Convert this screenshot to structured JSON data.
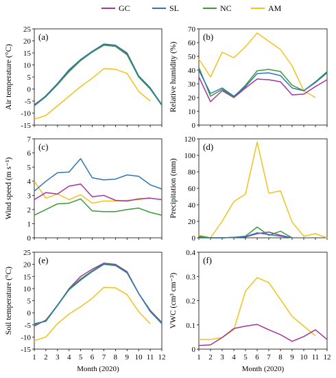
{
  "legend": [
    {
      "name": "GC",
      "color": "#a2359c"
    },
    {
      "name": "SL",
      "color": "#2e75b6"
    },
    {
      "name": "NC",
      "color": "#3a9a38"
    },
    {
      "name": "AM",
      "color": "#f2c21a"
    }
  ],
  "chart_data": [
    {
      "type": "line",
      "panel_label": "(a)",
      "ylabel": "Air temperature (°C)",
      "xlabel": "",
      "ylim": [
        -15,
        25
      ],
      "yticks": [
        -15,
        -10,
        -5,
        0,
        5,
        10,
        15,
        20,
        25
      ],
      "x": [
        1,
        2,
        3,
        4,
        5,
        6,
        7,
        8,
        9,
        10,
        11,
        12
      ],
      "series": [
        {
          "name": "GC",
          "values": [
            -6.5,
            -3,
            2,
            7.5,
            12,
            15.5,
            18.5,
            17.8,
            14.5,
            5,
            0,
            -6.5
          ]
        },
        {
          "name": "SL",
          "values": [
            -6.8,
            -2.8,
            2.3,
            8,
            12.3,
            15.7,
            18.7,
            18.2,
            15,
            5.5,
            0.5,
            -6.5
          ]
        },
        {
          "name": "NC",
          "values": [
            -7,
            -3.2,
            1.8,
            7.2,
            11.8,
            15.3,
            18.2,
            17.7,
            14.2,
            5,
            0,
            -6.8
          ]
        },
        {
          "name": "AM",
          "values": [
            -12.5,
            -11,
            -7,
            -3,
            1,
            4.5,
            8.5,
            8.2,
            6.5,
            -1,
            -5,
            null
          ]
        }
      ]
    },
    {
      "type": "line",
      "panel_label": "(b)",
      "ylabel": "Relative humidity (%)",
      "xlabel": "",
      "ylim": [
        0,
        70
      ],
      "yticks": [
        0,
        10,
        20,
        30,
        40,
        50,
        60,
        70
      ],
      "x": [
        1,
        2,
        3,
        4,
        5,
        6,
        7,
        8,
        9,
        10,
        11,
        12
      ],
      "series": [
        {
          "name": "GC",
          "values": [
            35,
            17,
            25,
            20,
            27,
            33.5,
            33,
            31.5,
            22,
            22.5,
            28,
            33
          ]
        },
        {
          "name": "SL",
          "values": [
            40,
            23,
            27,
            21,
            28,
            37.5,
            38,
            36,
            27,
            25,
            31,
            38
          ]
        },
        {
          "name": "NC",
          "values": [
            42,
            21,
            26,
            20.5,
            29,
            39.5,
            40.5,
            39,
            29,
            25,
            31.5,
            39
          ]
        },
        {
          "name": "AM",
          "values": [
            48,
            35,
            53,
            49,
            57,
            67,
            61,
            55,
            43,
            25,
            20,
            null
          ]
        }
      ]
    },
    {
      "type": "line",
      "panel_label": "(c)",
      "ylabel": "Wind speed (m s⁻¹)",
      "xlabel": "",
      "ylim": [
        0,
        7
      ],
      "yticks": [
        0,
        1,
        2,
        3,
        4,
        5,
        6,
        7
      ],
      "x": [
        1,
        2,
        3,
        4,
        5,
        6,
        7,
        8,
        9,
        10,
        11,
        12
      ],
      "series": [
        {
          "name": "GC",
          "values": [
            2.7,
            3.2,
            3.1,
            3.65,
            3.8,
            2.9,
            3,
            2.65,
            2.6,
            2.75,
            2.8,
            2.7
          ]
        },
        {
          "name": "SL",
          "values": [
            3.3,
            4,
            4.6,
            4.65,
            5.6,
            4.25,
            4.1,
            4.15,
            4.45,
            4.35,
            3.75,
            3.45
          ]
        },
        {
          "name": "NC",
          "values": [
            1.6,
            2,
            2.4,
            2.45,
            2.75,
            1.9,
            1.85,
            1.85,
            2,
            2.1,
            1.8,
            1.6
          ]
        },
        {
          "name": "AM",
          "values": [
            4,
            2.8,
            3.1,
            2.7,
            3.05,
            2.45,
            2.6,
            2.6,
            2.65,
            2.7,
            2.85,
            null
          ]
        }
      ]
    },
    {
      "type": "line",
      "panel_label": "(d)",
      "ylabel": "Precipitation (mm)",
      "xlabel": "",
      "ylim": [
        0,
        120
      ],
      "yticks": [
        0,
        20,
        40,
        60,
        80,
        100,
        120
      ],
      "x": [
        1,
        2,
        3,
        4,
        5,
        6,
        7,
        8,
        9,
        10,
        11,
        12
      ],
      "series": [
        {
          "name": "GC",
          "values": [
            1,
            0,
            0,
            0.5,
            1,
            5,
            7,
            3,
            0,
            null,
            null,
            null
          ]
        },
        {
          "name": "SL",
          "values": [
            0,
            0,
            0,
            0.5,
            1.5,
            6,
            4,
            2,
            0,
            null,
            null,
            null
          ]
        },
        {
          "name": "NC",
          "values": [
            2,
            0,
            0,
            0.5,
            2,
            13,
            3,
            8,
            0,
            null,
            null,
            null
          ]
        },
        {
          "name": "AM",
          "values": [
            3,
            0,
            20,
            44,
            53,
            116,
            54,
            57,
            19,
            2,
            5,
            0
          ]
        }
      ]
    },
    {
      "type": "line",
      "panel_label": "(e)",
      "ylabel": "Soil temperature (°C)",
      "xlabel": "Month (2020)",
      "ylim": [
        -15,
        25
      ],
      "yticks": [
        -15,
        -10,
        -5,
        0,
        5,
        10,
        15,
        20,
        25
      ],
      "x": [
        1,
        2,
        3,
        4,
        5,
        6,
        7,
        8,
        9,
        10,
        11,
        12
      ],
      "xticks": [
        "1",
        "2",
        "3",
        "4",
        "5",
        "6",
        "7",
        "8",
        "9",
        "10",
        "11",
        "12"
      ],
      "series": [
        {
          "name": "GC",
          "values": [
            -5.5,
            -3,
            3,
            10,
            15,
            18,
            20.5,
            20,
            17,
            8,
            1,
            -4
          ]
        },
        {
          "name": "SL",
          "values": [
            -4.5,
            -3.5,
            3,
            9.5,
            13.5,
            17,
            20,
            19.5,
            16.5,
            8,
            0.5,
            -4.5
          ]
        },
        {
          "name": "NC",
          "values": [
            -5,
            -3.2,
            3.2,
            9.8,
            14,
            17.3,
            20.2,
            19.7,
            16.7,
            8,
            0.8,
            -4.2
          ]
        },
        {
          "name": "AM",
          "values": [
            -11.5,
            -10,
            -4.5,
            -0.5,
            2.5,
            6,
            10.5,
            10.3,
            7.5,
            0.5,
            -4.5,
            null
          ]
        }
      ]
    },
    {
      "type": "line",
      "panel_label": "(f)",
      "ylabel": "VWC (cm³ cm⁻³)",
      "xlabel": "Month (2020)",
      "ylim": [
        0,
        0.4
      ],
      "yticks": [
        "0",
        "0.1",
        "0.2",
        "0.3",
        "0.4"
      ],
      "x": [
        1,
        2,
        3,
        4,
        5,
        6,
        7,
        8,
        9,
        10,
        11,
        12
      ],
      "xticks": [
        "1",
        "2",
        "3",
        "4",
        "5",
        "6",
        "7",
        "8",
        "9",
        "10",
        "11",
        "12"
      ],
      "series": [
        {
          "name": "GC",
          "values": [
            0.015,
            0.018,
            0.048,
            0.085,
            0.095,
            0.102,
            0.08,
            0.06,
            0.032,
            0.052,
            0.08,
            0.04
          ]
        },
        {
          "name": "AM",
          "values": [
            0.04,
            0.04,
            0.048,
            0.08,
            0.24,
            0.295,
            0.275,
            0.205,
            0.135,
            0.095,
            0.055,
            null
          ]
        }
      ]
    }
  ]
}
